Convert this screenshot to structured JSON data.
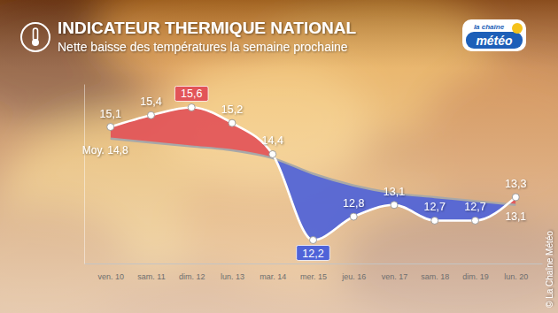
{
  "chart_data": {
    "type": "line",
    "title": "INDICATEUR THERMIQUE NATIONAL",
    "subtitle": "Nette baisse des températures la semaine prochaine",
    "categories": [
      "ven. 10",
      "sam. 11",
      "dim. 12",
      "lun. 13",
      "mar. 14",
      "mer. 15",
      "jeu. 16",
      "ven. 17",
      "sam. 18",
      "dim. 19",
      "lun. 20"
    ],
    "series": [
      {
        "color": "#ffffff",
        "marker": "circle",
        "line_style": "solid",
        "values": [
          15.1,
          15.4,
          15.6,
          15.2,
          14.4,
          12.2,
          12.8,
          13.1,
          12.7,
          12.7,
          13.3
        ],
        "value_labels": [
          "15,1",
          "15,4",
          "15,6",
          "15,2",
          "14,4",
          "12,2",
          "12,8",
          "13,1",
          "12,7",
          "12,7",
          "13,3"
        ]
      },
      {
        "color": "#a8a8a8",
        "line_style": "solid",
        "values": [
          14.8,
          14.7,
          14.6,
          14.5,
          14.3,
          13.9,
          13.6,
          13.4,
          13.3,
          13.2,
          13.1
        ],
        "value_labels": [
          "Moy. 14,8",
          null,
          null,
          null,
          null,
          null,
          null,
          null,
          null,
          null,
          "13,1"
        ]
      }
    ],
    "ylim": [
      11.6,
      16.2
    ],
    "tick_labels": "x",
    "data_labels": true,
    "annotations": [
      "la chaîne",
      "météo",
      "© La Chaîne Météo"
    ]
  }
}
